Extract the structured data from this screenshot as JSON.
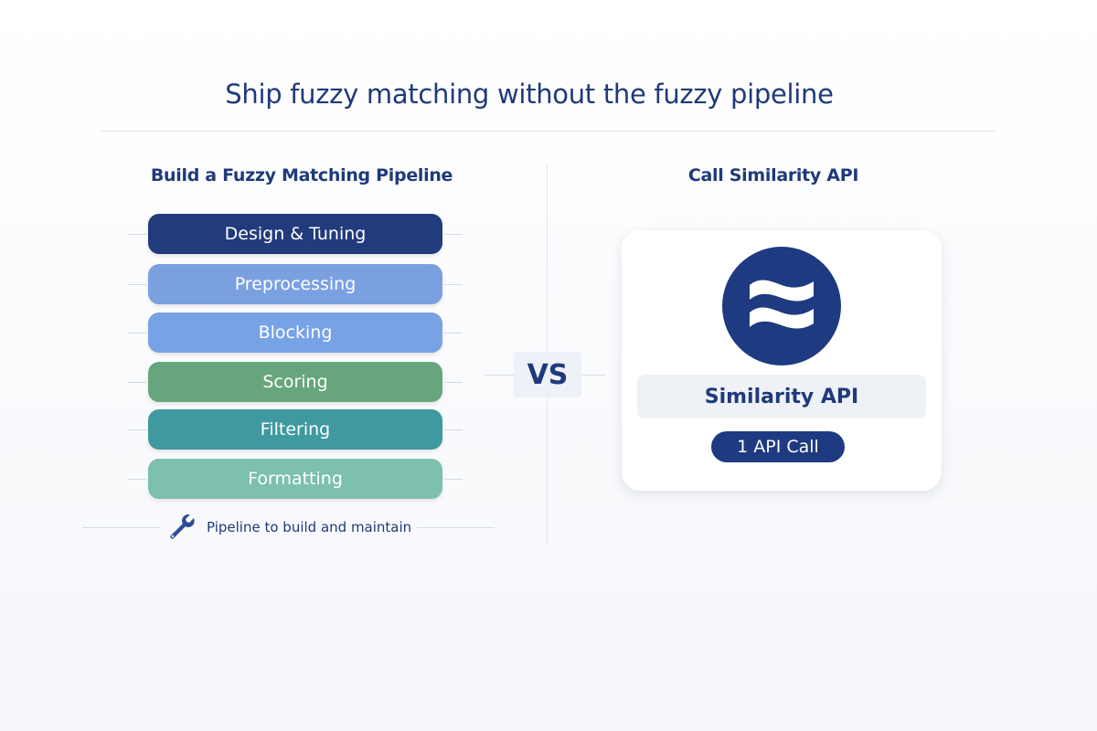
{
  "title": "Ship fuzzy matching without the fuzzy pipeline",
  "left": {
    "heading": "Build a Fuzzy Matching Pipeline",
    "steps": [
      {
        "label": "Design & Tuning",
        "color": "#213b7c"
      },
      {
        "label": "Preprocessing",
        "color": "#7aa0e0"
      },
      {
        "label": "Blocking",
        "color": "#78a2e6"
      },
      {
        "label": "Scoring",
        "color": "#67a67c"
      },
      {
        "label": "Filtering",
        "color": "#3e9aa0"
      },
      {
        "label": "Formatting",
        "color": "#7cc0ad"
      }
    ],
    "footer": {
      "icon": "wrench-icon",
      "text": "Pipeline to build and maintain"
    }
  },
  "vs": "VS",
  "right": {
    "heading": "Call Similarity API",
    "logo_icon": "approx-wave-icon",
    "product": "Similarity API",
    "badge": "1 API Call"
  }
}
